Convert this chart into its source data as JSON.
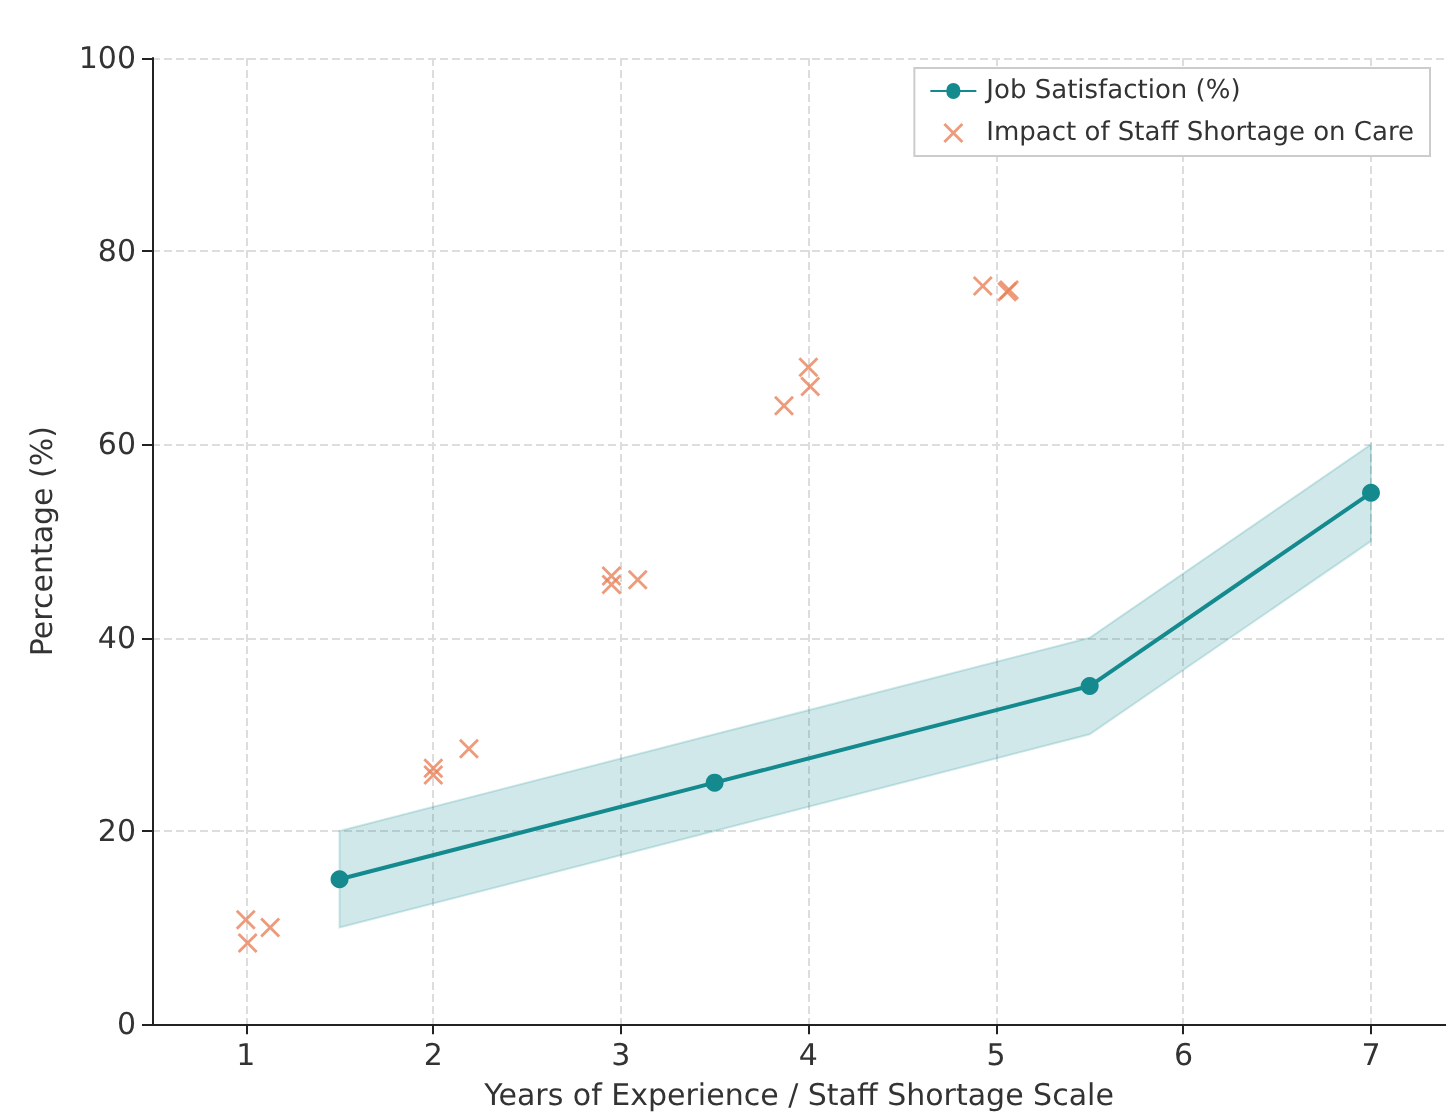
{
  "chart_data": {
    "type": "line",
    "xlabel": "Years of Experience / Staff Shortage Scale",
    "ylabel": "Percentage (%)",
    "xlim": [
      0.5,
      7.4
    ],
    "xticks": [
      1,
      2,
      3,
      4,
      5,
      6,
      7
    ],
    "ylim": [
      0,
      100
    ],
    "yticks": [
      0,
      20,
      40,
      60,
      80,
      100
    ],
    "grid": true,
    "legend": "top right",
    "series": [
      {
        "name": "Job Satisfaction (%)",
        "color": "#148a8f",
        "marker": "circle",
        "x": [
          1.5,
          3.5,
          5.5,
          7
        ],
        "values": [
          15,
          25,
          35,
          55
        ],
        "lower": [
          10,
          20,
          30,
          50
        ],
        "upper": [
          20,
          30,
          40,
          60
        ]
      },
      {
        "name": "Impact of Staff Shortage on Care",
        "type": "scatter",
        "color": "#e8825a",
        "marker": "cross",
        "x": [
          1.0,
          1.01,
          1.13,
          2.0,
          2.0,
          2.19,
          2.95,
          2.95,
          3.09,
          3.87,
          4.0,
          4.01,
          4.93,
          5.07,
          5.06
        ],
        "values": [
          10.8,
          8.4,
          10,
          26.5,
          25.8,
          28.5,
          46.4,
          45.5,
          46,
          64,
          68,
          66,
          76.4,
          76,
          75.8
        ]
      }
    ]
  }
}
